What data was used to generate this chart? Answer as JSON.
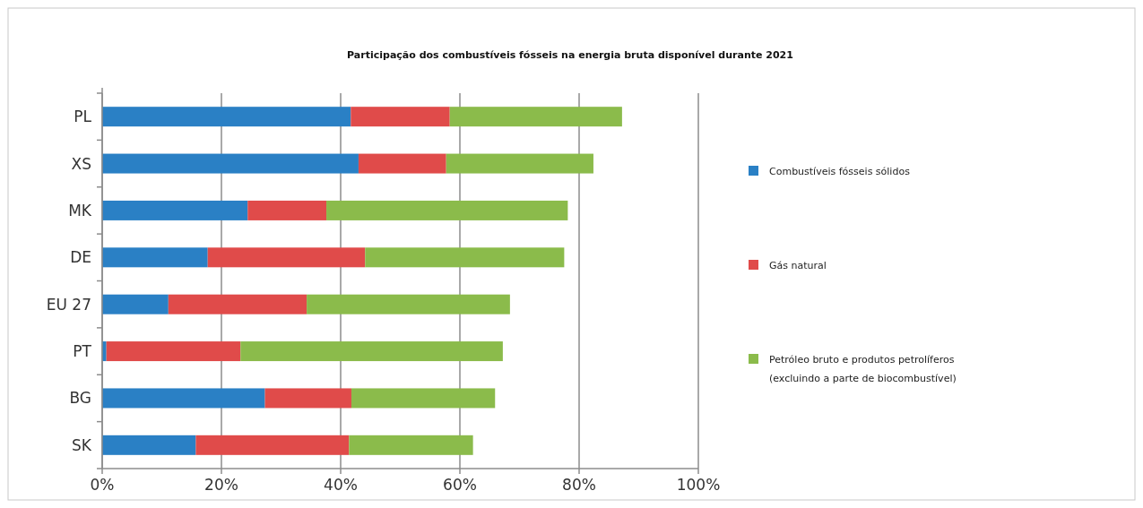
{
  "chart_data": {
    "type": "bar",
    "orientation": "horizontal",
    "stacked": true,
    "title": "Participação dos combustíveis fósseis na energia bruta disponível durante 2021",
    "categories": [
      "PL",
      "XS",
      "MK",
      "DE",
      "EU 27",
      "PT",
      "BG",
      "SK"
    ],
    "series": [
      {
        "name": "Combustíveis fósseis sólidos",
        "color": "#2a80c5",
        "values": [
          41.7,
          43.0,
          24.4,
          17.7,
          11.1,
          0.7,
          27.3,
          15.7
        ]
      },
      {
        "name": "Gás natural",
        "color": "#e04b4a",
        "values": [
          16.6,
          14.7,
          13.2,
          26.4,
          23.2,
          22.5,
          14.5,
          25.7
        ]
      },
      {
        "name": "Petróleo bruto e produtos petrolíferos (excluindo a parte de biocombustível)",
        "color": "#8bbb4b",
        "values": [
          28.9,
          24.7,
          40.5,
          33.4,
          34.1,
          44.0,
          24.1,
          20.8
        ]
      }
    ],
    "xlim": [
      0,
      100
    ],
    "xticks": [
      {
        "value": 0,
        "label": "0%"
      },
      {
        "value": 20,
        "label": "20%"
      },
      {
        "value": 40,
        "label": "40%"
      },
      {
        "value": 60,
        "label": "60%"
      },
      {
        "value": 80,
        "label": "80%"
      },
      {
        "value": 100,
        "label": "100%"
      }
    ],
    "grid": "x",
    "legend": "right"
  }
}
